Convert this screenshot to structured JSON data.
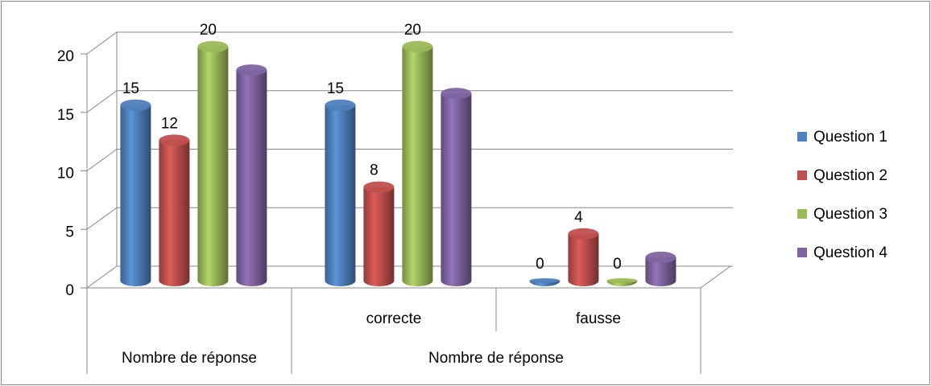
{
  "chart_data": {
    "type": "bar3d",
    "categories": [
      null,
      "correcte",
      "fausse"
    ],
    "category_groups": [
      {
        "label": "Nombre de réponse",
        "count": 1
      },
      {
        "label": "Nombre de réponse",
        "count": 2
      }
    ],
    "series": [
      {
        "name": "Question 1",
        "color": "#4f81bd",
        "values": [
          15,
          15,
          0
        ],
        "show_labels": true
      },
      {
        "name": "Question 2",
        "color": "#c0504d",
        "values": [
          12,
          8,
          4
        ],
        "show_labels": true
      },
      {
        "name": "Question 3",
        "color": "#9bbb59",
        "values": [
          20,
          20,
          0
        ],
        "show_labels": true
      },
      {
        "name": "Question 4",
        "color": "#8064a2",
        "values": [
          18,
          16,
          2
        ],
        "show_labels": false
      }
    ],
    "ylim": [
      0,
      20
    ],
    "yticks": [
      0,
      5,
      10,
      15,
      20
    ],
    "grid": true,
    "legend": "right"
  }
}
